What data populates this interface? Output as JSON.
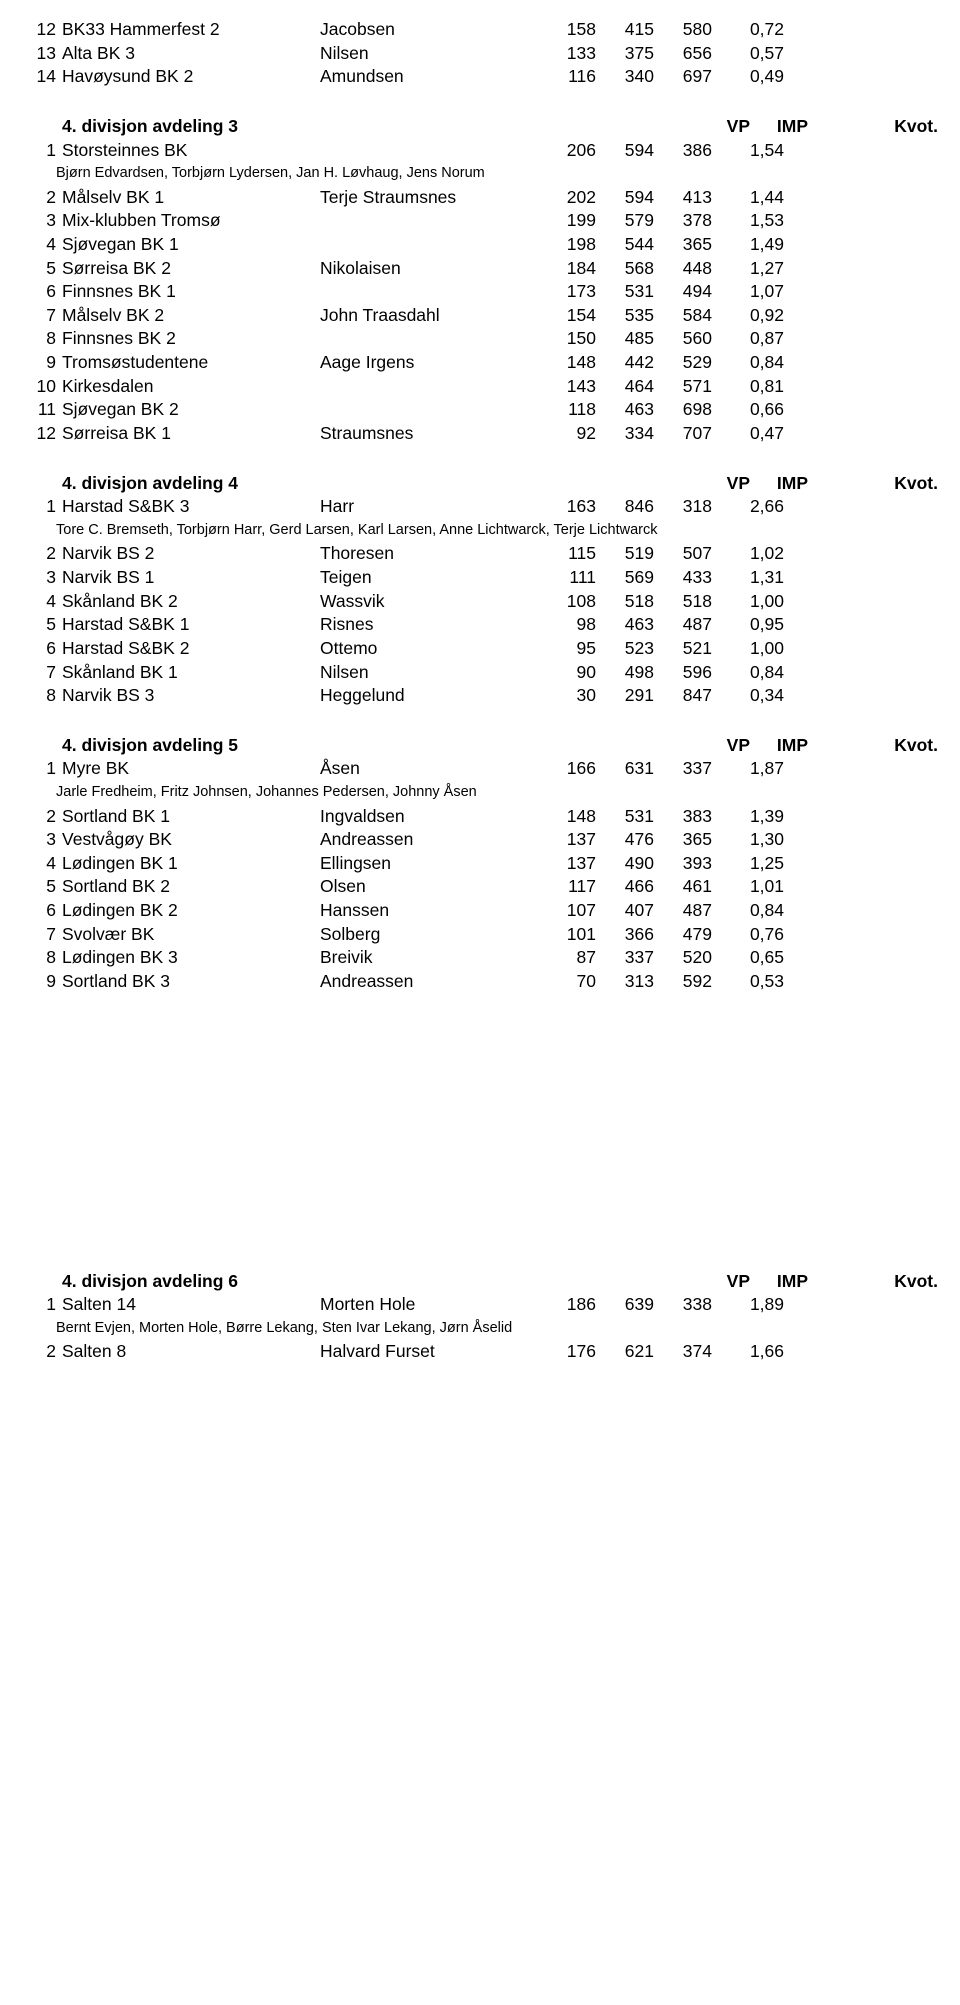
{
  "top_rows": [
    {
      "rank": "12",
      "team": "BK33 Hammerfest 2",
      "player": "Jacobsen",
      "n1": "158",
      "n2": "415",
      "n3": "580",
      "n4": "0,72"
    },
    {
      "rank": "13",
      "team": "Alta BK 3",
      "player": "Nilsen",
      "n1": "133",
      "n2": "375",
      "n3": "656",
      "n4": "0,57"
    },
    {
      "rank": "14",
      "team": "Havøysund BK 2",
      "player": "Amundsen",
      "n1": "116",
      "n2": "340",
      "n3": "697",
      "n4": "0,49"
    }
  ],
  "sections": [
    {
      "title": "4. divisjon avdeling 3",
      "hdr": {
        "n1": "VP",
        "n2": "IMP",
        "n4": "Kvot."
      },
      "first": {
        "rank": "1",
        "team": "Storsteinnes BK",
        "player": "",
        "n1": "206",
        "n2": "594",
        "n3": "386",
        "n4": "1,54"
      },
      "note": "Bjørn Edvardsen, Torbjørn Lydersen, Jan H. Løvhaug, Jens Norum",
      "rows": [
        {
          "rank": "2",
          "team": "Målselv BK 1",
          "player": "Terje Straumsnes",
          "n1": "202",
          "n2": "594",
          "n3": "413",
          "n4": "1,44"
        },
        {
          "rank": "3",
          "team": "Mix-klubben Tromsø",
          "player": "",
          "n1": "199",
          "n2": "579",
          "n3": "378",
          "n4": "1,53"
        },
        {
          "rank": "4",
          "team": "Sjøvegan BK 1",
          "player": "",
          "n1": "198",
          "n2": "544",
          "n3": "365",
          "n4": "1,49"
        },
        {
          "rank": "5",
          "team": "Sørreisa BK 2",
          "player": "Nikolaisen",
          "n1": "184",
          "n2": "568",
          "n3": "448",
          "n4": "1,27"
        },
        {
          "rank": "6",
          "team": "Finnsnes BK 1",
          "player": "",
          "n1": "173",
          "n2": "531",
          "n3": "494",
          "n4": "1,07"
        },
        {
          "rank": "7",
          "team": "Målselv BK 2",
          "player": "John Traasdahl",
          "n1": "154",
          "n2": "535",
          "n3": "584",
          "n4": "0,92"
        },
        {
          "rank": "8",
          "team": "Finnsnes BK 2",
          "player": "",
          "n1": "150",
          "n2": "485",
          "n3": "560",
          "n4": "0,87"
        },
        {
          "rank": "9",
          "team": "Tromsøstudentene",
          "player": "Aage Irgens",
          "n1": "148",
          "n2": "442",
          "n3": "529",
          "n4": "0,84"
        },
        {
          "rank": "10",
          "team": "Kirkesdalen",
          "player": "",
          "n1": "143",
          "n2": "464",
          "n3": "571",
          "n4": "0,81"
        },
        {
          "rank": "11",
          "team": "Sjøvegan BK 2",
          "player": "",
          "n1": "118",
          "n2": "463",
          "n3": "698",
          "n4": "0,66"
        },
        {
          "rank": "12",
          "team": "Sørreisa BK 1",
          "player": "Straumsnes",
          "n1": "92",
          "n2": "334",
          "n3": "707",
          "n4": "0,47"
        }
      ]
    },
    {
      "title": "4. divisjon avdeling 4",
      "hdr": {
        "n1": "VP",
        "n2": "IMP",
        "n4": "Kvot."
      },
      "first": {
        "rank": "1",
        "team": "Harstad S&BK 3",
        "player": "Harr",
        "n1": "163",
        "n2": "846",
        "n3": "318",
        "n4": "2,66"
      },
      "note": "Tore C. Bremseth, Torbjørn Harr, Gerd Larsen, Karl Larsen, Anne Lichtwarck, Terje Lichtwarck",
      "rows": [
        {
          "rank": "2",
          "team": "Narvik BS 2",
          "player": "Thoresen",
          "n1": "115",
          "n2": "519",
          "n3": "507",
          "n4": "1,02"
        },
        {
          "rank": "3",
          "team": "Narvik BS 1",
          "player": "Teigen",
          "n1": "111",
          "n2": "569",
          "n3": "433",
          "n4": "1,31"
        },
        {
          "rank": "4",
          "team": "Skånland BK 2",
          "player": "Wassvik",
          "n1": "108",
          "n2": "518",
          "n3": "518",
          "n4": "1,00"
        },
        {
          "rank": "5",
          "team": "Harstad S&BK 1",
          "player": "Risnes",
          "n1": "98",
          "n2": "463",
          "n3": "487",
          "n4": "0,95"
        },
        {
          "rank": "6",
          "team": "Harstad S&BK 2",
          "player": "Ottemo",
          "n1": "95",
          "n2": "523",
          "n3": "521",
          "n4": "1,00"
        },
        {
          "rank": "7",
          "team": "Skånland BK 1",
          "player": "Nilsen",
          "n1": "90",
          "n2": "498",
          "n3": "596",
          "n4": "0,84"
        },
        {
          "rank": "8",
          "team": "Narvik BS 3",
          "player": "Heggelund",
          "n1": "30",
          "n2": "291",
          "n3": "847",
          "n4": "0,34"
        }
      ]
    },
    {
      "title": "4. divisjon avdeling 5",
      "hdr": {
        "n1": "VP",
        "n2": "IMP",
        "n4": "Kvot."
      },
      "first": {
        "rank": "1",
        "team": "Myre BK",
        "player": "Åsen",
        "n1": "166",
        "n2": "631",
        "n3": "337",
        "n4": "1,87"
      },
      "note": "Jarle Fredheim, Fritz Johnsen, Johannes Pedersen, Johnny Åsen",
      "rows": [
        {
          "rank": "2",
          "team": "Sortland BK 1",
          "player": "Ingvaldsen",
          "n1": "148",
          "n2": "531",
          "n3": "383",
          "n4": "1,39"
        },
        {
          "rank": "3",
          "team": "Vestvågøy BK",
          "player": "Andreassen",
          "n1": "137",
          "n2": "476",
          "n3": "365",
          "n4": "1,30"
        },
        {
          "rank": "4",
          "team": "Lødingen BK 1",
          "player": "Ellingsen",
          "n1": "137",
          "n2": "490",
          "n3": "393",
          "n4": "1,25"
        },
        {
          "rank": "5",
          "team": "Sortland BK 2",
          "player": "Olsen",
          "n1": "117",
          "n2": "466",
          "n3": "461",
          "n4": "1,01"
        },
        {
          "rank": "6",
          "team": "Lødingen BK 2",
          "player": "Hanssen",
          "n1": "107",
          "n2": "407",
          "n3": "487",
          "n4": "0,84"
        },
        {
          "rank": "7",
          "team": "Svolvær BK",
          "player": "Solberg",
          "n1": "101",
          "n2": "366",
          "n3": "479",
          "n4": "0,76"
        },
        {
          "rank": "8",
          "team": "Lødingen BK 3",
          "player": "Breivik",
          "n1": "87",
          "n2": "337",
          "n3": "520",
          "n4": "0,65"
        },
        {
          "rank": "9",
          "team": "Sortland BK 3",
          "player": "Andreassen",
          "n1": "70",
          "n2": "313",
          "n3": "592",
          "n4": "0,53"
        }
      ]
    },
    {
      "title": "4. divisjon avdeling 6",
      "hdr": {
        "n1": "VP",
        "n2": "IMP",
        "n4": "Kvot."
      },
      "first": {
        "rank": "1",
        "team": "Salten 14",
        "player": "Morten Hole",
        "n1": "186",
        "n2": "639",
        "n3": "338",
        "n4": "1,89"
      },
      "note": "Bernt Evjen, Morten Hole, Børre Lekang, Sten Ivar Lekang, Jørn Åselid",
      "rows": [
        {
          "rank": "2",
          "team": "Salten 8",
          "player": "Halvard Furset",
          "n1": "176",
          "n2": "621",
          "n3": "374",
          "n4": "1,66"
        }
      ]
    }
  ]
}
